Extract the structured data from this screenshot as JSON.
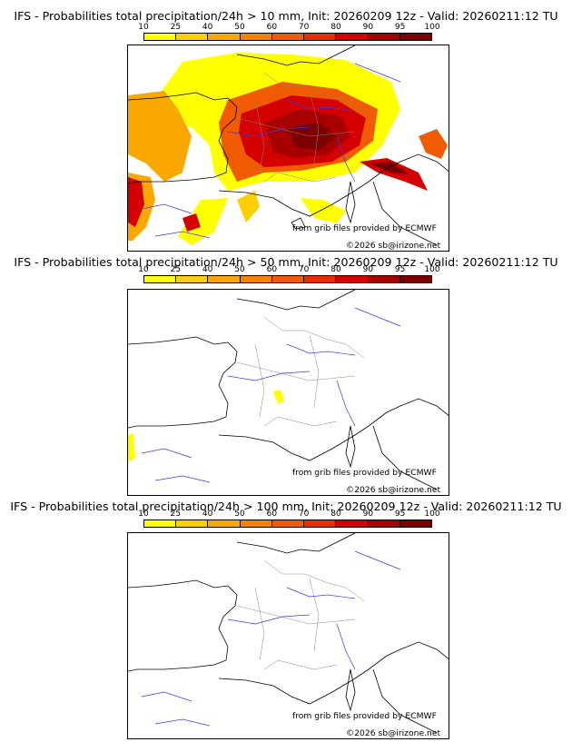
{
  "colorbar": {
    "ticks": [
      "10",
      "25",
      "40",
      "50",
      "60",
      "70",
      "80",
      "90",
      "95",
      "100"
    ],
    "colors": [
      "#ffff00",
      "#fcd000",
      "#f8a800",
      "#f58200",
      "#f05a00",
      "#e82e00",
      "#d40000",
      "#a80000",
      "#7d0000"
    ]
  },
  "panels": [
    {
      "title": "IFS - Probabilities total precipitation/24h > 10 mm, Init: 20260209 12z - Valid: 20260211:12 TU",
      "credit_source": "from grib files provided by ECMWF",
      "credit_copyright": "©2026 sb@irizone.net",
      "coverage_level": "high"
    },
    {
      "title": "IFS - Probabilities total precipitation/24h > 50 mm, Init: 20260209 12z - Valid: 20260211:12 TU",
      "credit_source": "from grib files provided by ECMWF",
      "credit_copyright": "©2026 sb@irizone.net",
      "coverage_level": "low"
    },
    {
      "title": "IFS - Probabilities total precipitation/24h > 100 mm, Init: 20260209 12z - Valid: 20260211:12 TU",
      "credit_source": "from grib files provided by ECMWF",
      "credit_copyright": "©2026 sb@irizone.net",
      "coverage_level": "none"
    }
  ]
}
